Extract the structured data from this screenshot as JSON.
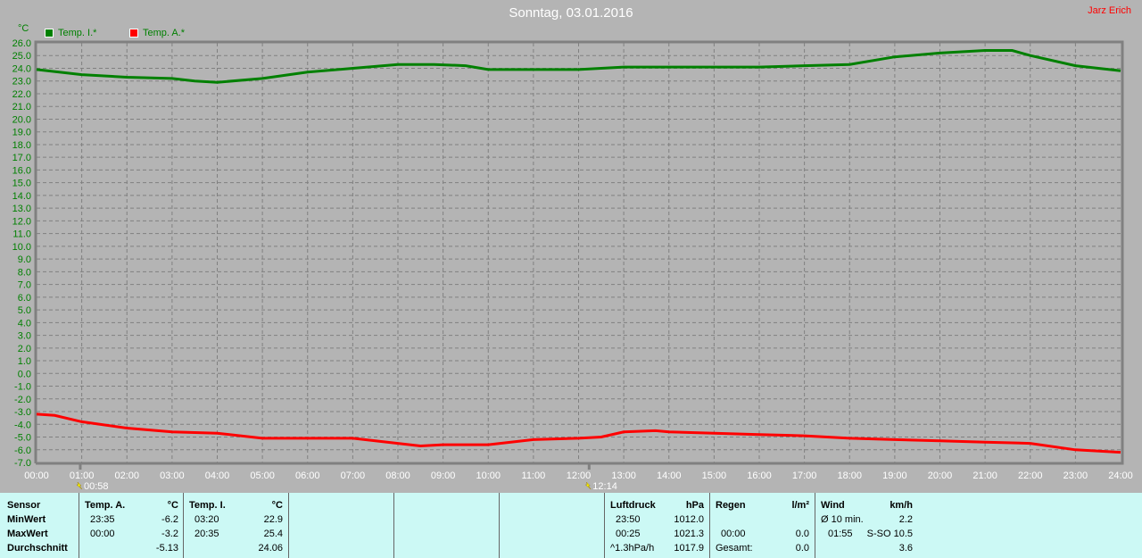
{
  "title": "Sonntag, 03.01.2016",
  "author": "Jarz Erich",
  "chart_data": {
    "type": "line",
    "title": "Sonntag, 03.01.2016",
    "ylabel": "°C",
    "ylim": [
      -7.0,
      26.0
    ],
    "xlim": [
      0,
      24
    ],
    "grid": true,
    "legend": "top-left",
    "y_ticks": [
      "26.0",
      "25.0",
      "24.0",
      "23.0",
      "22.0",
      "21.0",
      "20.0",
      "19.0",
      "18.0",
      "17.0",
      "16.0",
      "15.0",
      "14.0",
      "13.0",
      "12.0",
      "11.0",
      "10.0",
      "9.0",
      "8.0",
      "7.0",
      "6.0",
      "5.0",
      "4.0",
      "3.0",
      "2.0",
      "1.0",
      "0.0",
      "-1.0",
      "-2.0",
      "-3.0",
      "-4.0",
      "-5.0",
      "-6.0",
      "-7.0"
    ],
    "x_ticks": [
      "00:00",
      "01:00",
      "02:00",
      "03:00",
      "04:00",
      "05:00",
      "06:00",
      "07:00",
      "08:00",
      "09:00",
      "10:00",
      "11:00",
      "12:00",
      "13:00",
      "14:00",
      "15:00",
      "16:00",
      "17:00",
      "18:00",
      "19:00",
      "20:00",
      "21:00",
      "22:00",
      "23:00",
      "24:00"
    ],
    "series": [
      {
        "name": "Temp. I.*",
        "color": "#008000",
        "x": [
          0,
          1,
          2,
          3,
          3.5,
          4,
          5,
          6,
          7,
          8,
          8.8,
          9.5,
          10,
          11,
          12,
          13,
          14,
          15,
          16,
          17,
          18,
          19,
          20,
          21,
          21.6,
          22,
          23,
          24
        ],
        "y": [
          23.9,
          23.5,
          23.3,
          23.2,
          23.0,
          22.9,
          23.2,
          23.7,
          24.0,
          24.3,
          24.3,
          24.2,
          23.9,
          23.9,
          23.9,
          24.1,
          24.1,
          24.1,
          24.1,
          24.2,
          24.3,
          24.9,
          25.2,
          25.4,
          25.4,
          25.0,
          24.2,
          23.8
        ]
      },
      {
        "name": "Temp. A.*",
        "color": "#ff0000",
        "x": [
          0,
          0.4,
          1,
          2,
          3,
          4,
          5,
          6,
          7,
          8,
          8.5,
          9,
          10,
          11,
          12,
          12.5,
          13,
          13.7,
          14,
          15,
          16,
          17,
          18,
          19,
          20,
          21,
          22,
          23,
          24
        ],
        "y": [
          -3.2,
          -3.3,
          -3.8,
          -4.3,
          -4.6,
          -4.7,
          -5.1,
          -5.1,
          -5.1,
          -5.5,
          -5.7,
          -5.6,
          -5.6,
          -5.2,
          -5.1,
          -5.0,
          -4.6,
          -4.5,
          -4.6,
          -4.7,
          -4.8,
          -4.9,
          -5.1,
          -5.2,
          -5.3,
          -5.4,
          -5.5,
          -6.0,
          -6.2
        ]
      }
    ],
    "markers": [
      {
        "time": "00:58",
        "icon": "sunrise-icon",
        "hour": 0.967
      },
      {
        "time": "12:14",
        "icon": "lightning-icon",
        "hour": 12.233
      }
    ]
  },
  "legend": [
    {
      "label": "Temp. I.*",
      "color": "#008000"
    },
    {
      "label": "Temp. A.*",
      "color": "#ff0000"
    }
  ],
  "summary": {
    "labels": {
      "sensor": "Sensor",
      "min": "MinWert",
      "max": "MaxWert",
      "avg": "Durchschnitt"
    },
    "temp_a": {
      "name": "Temp. A.",
      "unit": "°C",
      "min_time": "23:35",
      "min": "-6.2",
      "max_time": "00:00",
      "max": "-3.2",
      "avg": "-5.13"
    },
    "temp_i": {
      "name": "Temp. I.",
      "unit": "°C",
      "min_time": "03:20",
      "min": "22.9",
      "max_time": "20:35",
      "max": "25.4",
      "avg": "24.06"
    },
    "pressure": {
      "name": "Luftdruck",
      "unit": "hPa",
      "min_time": "23:50",
      "min": "1012.0",
      "max_time": "00:25",
      "max": "1021.3",
      "trend": "^1.3hPa/h",
      "avg": "1017.9"
    },
    "rain": {
      "name": "Regen",
      "unit": "l/m²",
      "max_time": "00:00",
      "max": "0.0",
      "total_label": "Gesamt:",
      "total": "0.0"
    },
    "wind": {
      "name": "Wind",
      "unit": "km/h",
      "avg_label": "Ø 10 min.",
      "avg": "2.2",
      "max_time": "01:55",
      "max": "S-SO 10.5",
      "mean": "3.6"
    }
  }
}
